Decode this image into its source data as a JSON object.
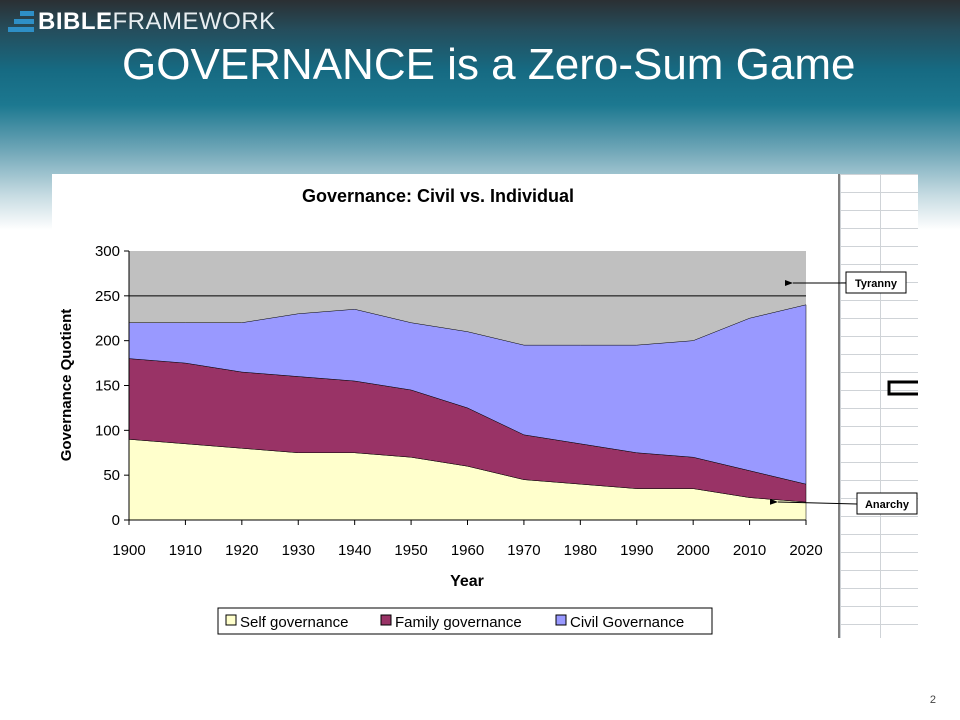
{
  "slide": {
    "brand": {
      "bold": "BIBLE",
      "light": "FRAMEWORK"
    },
    "title": "GOVERNANCE is a Zero-Sum Game",
    "page_number": "2"
  },
  "colors": {
    "self": "#FFFFCC",
    "family": "#993366",
    "civil": "#9999FF",
    "plot_bg": "#C0C0C0",
    "accent": "#1c7890"
  },
  "chart_data": {
    "type": "area",
    "stacked": true,
    "title": "Governance: Civil vs. Individual",
    "xlabel": "Year",
    "ylabel": "Governance Quotient",
    "categories": [
      "1900",
      "1910",
      "1920",
      "1930",
      "1940",
      "1950",
      "1960",
      "1970",
      "1980",
      "1990",
      "2000",
      "2010",
      "2020"
    ],
    "ylim": [
      0,
      300
    ],
    "yticks": [
      "0",
      "50",
      "100",
      "150",
      "200",
      "250",
      "300"
    ],
    "series": [
      {
        "name": "Self governance",
        "values": [
          90,
          85,
          80,
          75,
          75,
          70,
          60,
          45,
          40,
          35,
          35,
          25,
          20
        ]
      },
      {
        "name": "Family governance",
        "values": [
          90,
          90,
          85,
          85,
          80,
          75,
          65,
          50,
          45,
          40,
          35,
          30,
          20
        ]
      },
      {
        "name": "Civil Governance",
        "values": [
          40,
          45,
          55,
          70,
          80,
          75,
          85,
          100,
          110,
          120,
          130,
          170,
          200
        ]
      }
    ],
    "reference_line": 250,
    "legend_position": "bottom",
    "grid": false,
    "annotations": [
      {
        "label": "Tyranny",
        "value": 250
      },
      {
        "label": "Anarchy",
        "value": 20
      }
    ]
  }
}
